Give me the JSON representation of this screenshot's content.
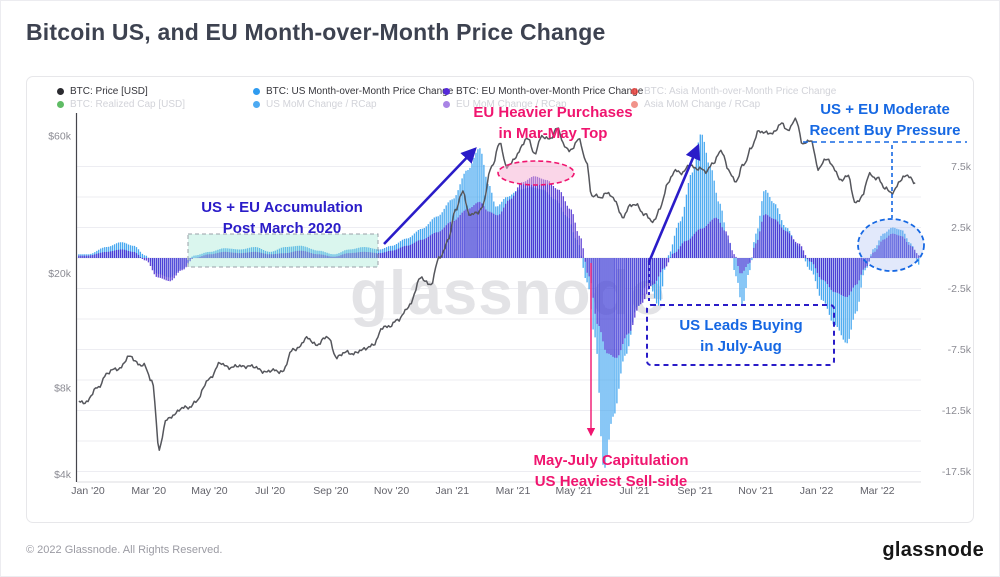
{
  "header": {
    "title": "Bitcoin US, and EU Month-over-Month Price Change"
  },
  "colors": {
    "ann_navy": "#2a1cc8",
    "ann_blue": "#1668e3",
    "ann_pink": "#f0156f",
    "us_bar": "#3fa4ef",
    "eu_bar": "#4b2bd0",
    "price_line": "#55565c",
    "grid_line": "#ededf2",
    "axis_line": "#45454c",
    "watermark": "#e3e3e6",
    "teal_fill": "rgba(150,230,205,0.35)",
    "pink_fill": "rgba(246,173,209,0.5)",
    "blue_fill": "rgba(150,175,240,0.28)",
    "axis_text": "#8b8b93",
    "tick_text": "#62626a"
  },
  "legend": {
    "items": [
      {
        "label": "BTC: Price [USD]",
        "color": "#2b2b30",
        "muted": false
      },
      {
        "label": "BTC: US Month-over-Month Price Change",
        "color": "#2e9bf0",
        "muted": false
      },
      {
        "label": "BTC: EU Month-over-Month Price Change",
        "color": "#5529d8",
        "muted": false
      },
      {
        "label": "BTC: Asia Month-over-Month Price Change",
        "color": "#e8413c",
        "muted": true
      },
      {
        "label": "BTC: Realized Cap [USD]",
        "color": "#43b04a",
        "muted": true
      },
      {
        "label": "US MoM Change / RCap",
        "color": "#2e9bf0",
        "muted": true
      },
      {
        "label": "EU MoM Change / RCap",
        "color": "#9a6fe0",
        "muted": true
      },
      {
        "label": "Asia MoM Change / RCap",
        "color": "#ef8076",
        "muted": true
      }
    ]
  },
  "annotations": {
    "accumulation": {
      "line1": "US + EU Accumulation",
      "line2": "Post March 2020"
    },
    "eu_heavier": {
      "line1": "EU Heavier Purchases",
      "line2": "in Mar-May Top"
    },
    "moderate": {
      "line1": "US + EU Moderate",
      "line2": "Recent Buy Pressure"
    },
    "us_leads": {
      "line1": "US Leads Buying",
      "line2": "in July-Aug"
    },
    "capitulation": {
      "line1": "May-July Capitulation",
      "line2": "US Heaviest Sell-side"
    }
  },
  "watermark": "glassnode",
  "footer": {
    "copyright": "© 2022 Glassnode. All Rights Reserved.",
    "logo": "glassnode"
  },
  "chart_data": {
    "type": "combo",
    "x_axis": {
      "unit": "months since Jan 2020",
      "tick_positions": [
        0,
        2,
        4,
        6,
        8,
        10,
        12,
        14,
        16,
        18,
        20,
        22,
        24,
        26
      ],
      "tick_labels": [
        "Jan '20",
        "Mar '20",
        "May '20",
        "Jul '20",
        "Sep '20",
        "Nov '20",
        "Jan '21",
        "Mar '21",
        "May '21",
        "Jul '21",
        "Sep '21",
        "Nov '21",
        "Jan '22",
        "Mar '22"
      ],
      "range": [
        -0.3,
        27.4
      ]
    },
    "y_left": {
      "scale": "log",
      "unit": "USD (thousands)",
      "tick_values": [
        60,
        20,
        8,
        4
      ],
      "tick_labels": [
        "$60k",
        "$20k",
        "$8k",
        "$4k"
      ]
    },
    "y_right": {
      "scale": "linear",
      "unit": "BTC MoM price change (thousands)",
      "tick_values": [
        7.5,
        2.5,
        -2.5,
        -7.5,
        -12.5,
        -17.5
      ],
      "tick_labels": [
        "7.5k",
        "2.5k",
        "-2.5k",
        "-7.5k",
        "-12.5k",
        "-17.5k"
      ],
      "gridline_values": [
        7.5,
        5,
        2.5,
        0,
        -2.5,
        -5,
        -7.5,
        -10,
        -12.5,
        -15,
        -17.5
      ]
    },
    "series": [
      {
        "name": "BTC: Price [USD]",
        "type": "line",
        "axis": "y_left",
        "points": [
          [
            0,
            7.2
          ],
          [
            0.3,
            8.0
          ],
          [
            0.6,
            8.9
          ],
          [
            1,
            9.4
          ],
          [
            1.4,
            10.2
          ],
          [
            1.8,
            9.6
          ],
          [
            2.1,
            8.5
          ],
          [
            2.35,
            4.9
          ],
          [
            2.6,
            6.2
          ],
          [
            2.9,
            6.6
          ],
          [
            3.2,
            6.8
          ],
          [
            3.6,
            7.2
          ],
          [
            4,
            8.7
          ],
          [
            4.4,
            9.7
          ],
          [
            4.8,
            9.4
          ],
          [
            5.2,
            9.6
          ],
          [
            5.6,
            9.3
          ],
          [
            6,
            9.1
          ],
          [
            6.4,
            9.2
          ],
          [
            6.8,
            10.9
          ],
          [
            7.2,
            11.8
          ],
          [
            7.5,
            11.4
          ],
          [
            7.9,
            11.9
          ],
          [
            8.2,
            10.3
          ],
          [
            8.6,
            10.6
          ],
          [
            9,
            10.7
          ],
          [
            9.4,
            11.4
          ],
          [
            9.8,
            13.1
          ],
          [
            10.2,
            13.6
          ],
          [
            10.6,
            15.6
          ],
          [
            11,
            19.4
          ],
          [
            11.3,
            18.2
          ],
          [
            11.6,
            23.0
          ],
          [
            11.9,
            26.5
          ],
          [
            12.1,
            33
          ],
          [
            12.35,
            39
          ],
          [
            12.55,
            31.5
          ],
          [
            12.8,
            32.5
          ],
          [
            13,
            34.3
          ],
          [
            13.3,
            46.5
          ],
          [
            13.55,
            57
          ],
          [
            13.8,
            46
          ],
          [
            14.05,
            50.5
          ],
          [
            14.3,
            55
          ],
          [
            14.5,
            59
          ],
          [
            14.7,
            52.5
          ],
          [
            14.95,
            58.9
          ],
          [
            15.2,
            59
          ],
          [
            15.45,
            63.5
          ],
          [
            15.7,
            55
          ],
          [
            15.95,
            54
          ],
          [
            16.15,
            58
          ],
          [
            16.4,
            50
          ],
          [
            16.6,
            37
          ],
          [
            16.85,
            36.5
          ],
          [
            17.1,
            38.5
          ],
          [
            17.35,
            35.5
          ],
          [
            17.6,
            31.6
          ],
          [
            17.85,
            34
          ],
          [
            18.1,
            34.5
          ],
          [
            18.35,
            32
          ],
          [
            18.6,
            29.8
          ],
          [
            18.85,
            34
          ],
          [
            19.1,
            40.5
          ],
          [
            19.35,
            46
          ],
          [
            19.6,
            44.5
          ],
          [
            19.85,
            47.5
          ],
          [
            20.1,
            46.5
          ],
          [
            20.35,
            44.6
          ],
          [
            20.6,
            49
          ],
          [
            20.85,
            52.7
          ],
          [
            21.1,
            46
          ],
          [
            21.35,
            41.5
          ],
          [
            21.6,
            47.5
          ],
          [
            21.85,
            55
          ],
          [
            22.1,
            61.5
          ],
          [
            22.35,
            62.3
          ],
          [
            22.6,
            61
          ],
          [
            22.85,
            66.5
          ],
          [
            23.1,
            63
          ],
          [
            23.3,
            68
          ],
          [
            23.55,
            57
          ],
          [
            23.8,
            57.5
          ],
          [
            24.05,
            46.5
          ],
          [
            24.3,
            50
          ],
          [
            24.55,
            46.5
          ],
          [
            24.8,
            42.5
          ],
          [
            25.05,
            43
          ],
          [
            25.25,
            35.5
          ],
          [
            25.5,
            36.8
          ],
          [
            25.75,
            44
          ],
          [
            26,
            43.2
          ],
          [
            26.25,
            39
          ],
          [
            26.5,
            38.5
          ],
          [
            26.75,
            41.5
          ],
          [
            27,
            44
          ],
          [
            27.3,
            41
          ]
        ]
      },
      {
        "name": "BTC: US Month-over-Month Price Change",
        "type": "bar",
        "axis": "y_right",
        "points": [
          [
            0,
            0.3
          ],
          [
            0.6,
            0.9
          ],
          [
            1.1,
            1.3
          ],
          [
            1.5,
            1.0
          ],
          [
            1.9,
            0.2
          ],
          [
            2.3,
            -1.3
          ],
          [
            2.7,
            -1.6
          ],
          [
            3.1,
            -0.9
          ],
          [
            3.5,
            0.2
          ],
          [
            4,
            0.5
          ],
          [
            4.5,
            0.8
          ],
          [
            5,
            0.7
          ],
          [
            5.5,
            0.9
          ],
          [
            6,
            0.5
          ],
          [
            6.5,
            0.9
          ],
          [
            7,
            1.0
          ],
          [
            7.6,
            0.6
          ],
          [
            8.1,
            0.3
          ],
          [
            8.6,
            0.7
          ],
          [
            9.1,
            0.9
          ],
          [
            9.6,
            0.7
          ],
          [
            10,
            1.0
          ],
          [
            10.5,
            1.6
          ],
          [
            11,
            2.4
          ],
          [
            11.5,
            3.4
          ],
          [
            12,
            4.8
          ],
          [
            12.5,
            7.2
          ],
          [
            12.9,
            9.0
          ],
          [
            13.2,
            6.0
          ],
          [
            13.45,
            4.2
          ],
          [
            13.8,
            5.0
          ],
          [
            14.2,
            5.6
          ],
          [
            14.6,
            5.8
          ],
          [
            15,
            5.6
          ],
          [
            15.4,
            4.8
          ],
          [
            15.8,
            3.4
          ],
          [
            16.1,
            1.5
          ],
          [
            16.45,
            -2.0
          ],
          [
            16.7,
            -6.5
          ],
          [
            17,
            -17.3
          ],
          [
            17.3,
            -13.0
          ],
          [
            17.7,
            -8.0
          ],
          [
            18.1,
            -4.0
          ],
          [
            18.45,
            -2.0
          ],
          [
            18.8,
            -3.9
          ],
          [
            19.1,
            0.2
          ],
          [
            19.5,
            3.0
          ],
          [
            19.9,
            7.0
          ],
          [
            20.2,
            10.2
          ],
          [
            20.5,
            7.5
          ],
          [
            20.8,
            4.5
          ],
          [
            21.1,
            1.5
          ],
          [
            21.35,
            -1.5
          ],
          [
            21.55,
            -3.9
          ],
          [
            21.8,
            -1.0
          ],
          [
            22,
            2.0
          ],
          [
            22.3,
            5.6
          ],
          [
            22.6,
            4.5
          ],
          [
            23,
            2.5
          ],
          [
            23.4,
            1.0
          ],
          [
            23.8,
            -1.0
          ],
          [
            24.2,
            -3.5
          ],
          [
            24.6,
            -5.5
          ],
          [
            25,
            -7.0
          ],
          [
            25.3,
            -4.5
          ],
          [
            25.6,
            -1.0
          ],
          [
            25.9,
            0.8
          ],
          [
            26.2,
            2.0
          ],
          [
            26.5,
            2.5
          ],
          [
            26.8,
            2.3
          ],
          [
            27.1,
            1.2
          ],
          [
            27.4,
            -0.6
          ]
        ]
      },
      {
        "name": "BTC: EU Month-over-Month Price Change",
        "type": "bar",
        "axis": "y_right",
        "points": [
          [
            0,
            0.2
          ],
          [
            0.6,
            0.5
          ],
          [
            1.1,
            0.7
          ],
          [
            1.5,
            0.5
          ],
          [
            1.9,
            -0.2
          ],
          [
            2.3,
            -1.6
          ],
          [
            2.7,
            -1.9
          ],
          [
            3.1,
            -1.0
          ],
          [
            3.5,
            0
          ],
          [
            4,
            0.3
          ],
          [
            4.5,
            0.5
          ],
          [
            5,
            0.4
          ],
          [
            5.5,
            0.5
          ],
          [
            6,
            0.3
          ],
          [
            6.5,
            0.4
          ],
          [
            7,
            0.6
          ],
          [
            7.6,
            0.3
          ],
          [
            8.1,
            0.1
          ],
          [
            8.6,
            0.4
          ],
          [
            9.1,
            0.5
          ],
          [
            9.6,
            0.4
          ],
          [
            10,
            0.6
          ],
          [
            10.5,
            1.0
          ],
          [
            11,
            1.5
          ],
          [
            11.5,
            2.1
          ],
          [
            12,
            3.0
          ],
          [
            12.5,
            4.0
          ],
          [
            12.9,
            4.6
          ],
          [
            13.2,
            3.8
          ],
          [
            13.5,
            3.5
          ],
          [
            13.9,
            4.8
          ],
          [
            14.3,
            6.2
          ],
          [
            14.7,
            6.7
          ],
          [
            15.1,
            6.4
          ],
          [
            15.5,
            5.6
          ],
          [
            15.9,
            4.0
          ],
          [
            16.2,
            1.8
          ],
          [
            16.5,
            -1.5
          ],
          [
            16.8,
            -5.5
          ],
          [
            17.1,
            -7.8
          ],
          [
            17.4,
            -8.2
          ],
          [
            17.8,
            -6.2
          ],
          [
            18.2,
            -3.8
          ],
          [
            18.6,
            -2.2
          ],
          [
            19,
            -0.8
          ],
          [
            19.3,
            0.4
          ],
          [
            19.7,
            1.4
          ],
          [
            20.2,
            2.4
          ],
          [
            20.7,
            3.3
          ],
          [
            21,
            2.2
          ],
          [
            21.3,
            0.3
          ],
          [
            21.5,
            -1.3
          ],
          [
            21.8,
            -0.4
          ],
          [
            22,
            1.2
          ],
          [
            22.3,
            3.6
          ],
          [
            22.6,
            3.2
          ],
          [
            23,
            2.2
          ],
          [
            23.4,
            1.2
          ],
          [
            23.8,
            -0.3
          ],
          [
            24.2,
            -1.8
          ],
          [
            24.6,
            -2.8
          ],
          [
            25,
            -3.2
          ],
          [
            25.3,
            -2.2
          ],
          [
            25.6,
            -0.8
          ],
          [
            25.9,
            0.5
          ],
          [
            26.2,
            1.5
          ],
          [
            26.5,
            2.0
          ],
          [
            26.8,
            1.8
          ],
          [
            27.1,
            1.0
          ],
          [
            27.4,
            0.2
          ]
        ]
      }
    ]
  }
}
